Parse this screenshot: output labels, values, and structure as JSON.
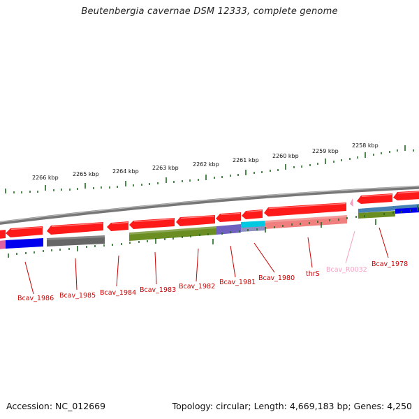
{
  "title": "Beutenbergia cavernae DSM 12333, complete genome",
  "footer": {
    "accession": "Accession: NC_012669",
    "summary": "Topology: circular; Length: 4,669,183 bp; Genes: 4,250"
  },
  "colors": {
    "forward_cds": "#ff0000",
    "reverse_cds": "#ff0000",
    "tick": "#1f6b1f",
    "label": "#cc0000",
    "label_rna": "#f4a0c0",
    "backbone": "#808080"
  },
  "scale_labels": [
    "2266 kbp",
    "2265 kbp",
    "2264 kbp",
    "2263 kbp",
    "2262 kbp",
    "2261 kbp",
    "2260 kbp",
    "2259 kbp",
    "2258 kbp"
  ],
  "gene_labels": [
    {
      "name": "Bcav_1986",
      "kind": "cds"
    },
    {
      "name": "Bcav_1985",
      "kind": "cds"
    },
    {
      "name": "Bcav_1984",
      "kind": "cds"
    },
    {
      "name": "Bcav_1983",
      "kind": "cds"
    },
    {
      "name": "Bcav_1982",
      "kind": "cds"
    },
    {
      "name": "Bcav_1981",
      "kind": "cds"
    },
    {
      "name": "Bcav_1980",
      "kind": "cds"
    },
    {
      "name": "thrS",
      "kind": "cds"
    },
    {
      "name": "Bcav_R0032",
      "kind": "rna"
    },
    {
      "name": "Bcav_1978",
      "kind": "cds"
    }
  ],
  "cog_colors": [
    "#0000ee",
    "#666666",
    "#6b8e23",
    "#7060c0",
    "#00c8e0",
    "#f08080",
    "#4682b4"
  ]
}
